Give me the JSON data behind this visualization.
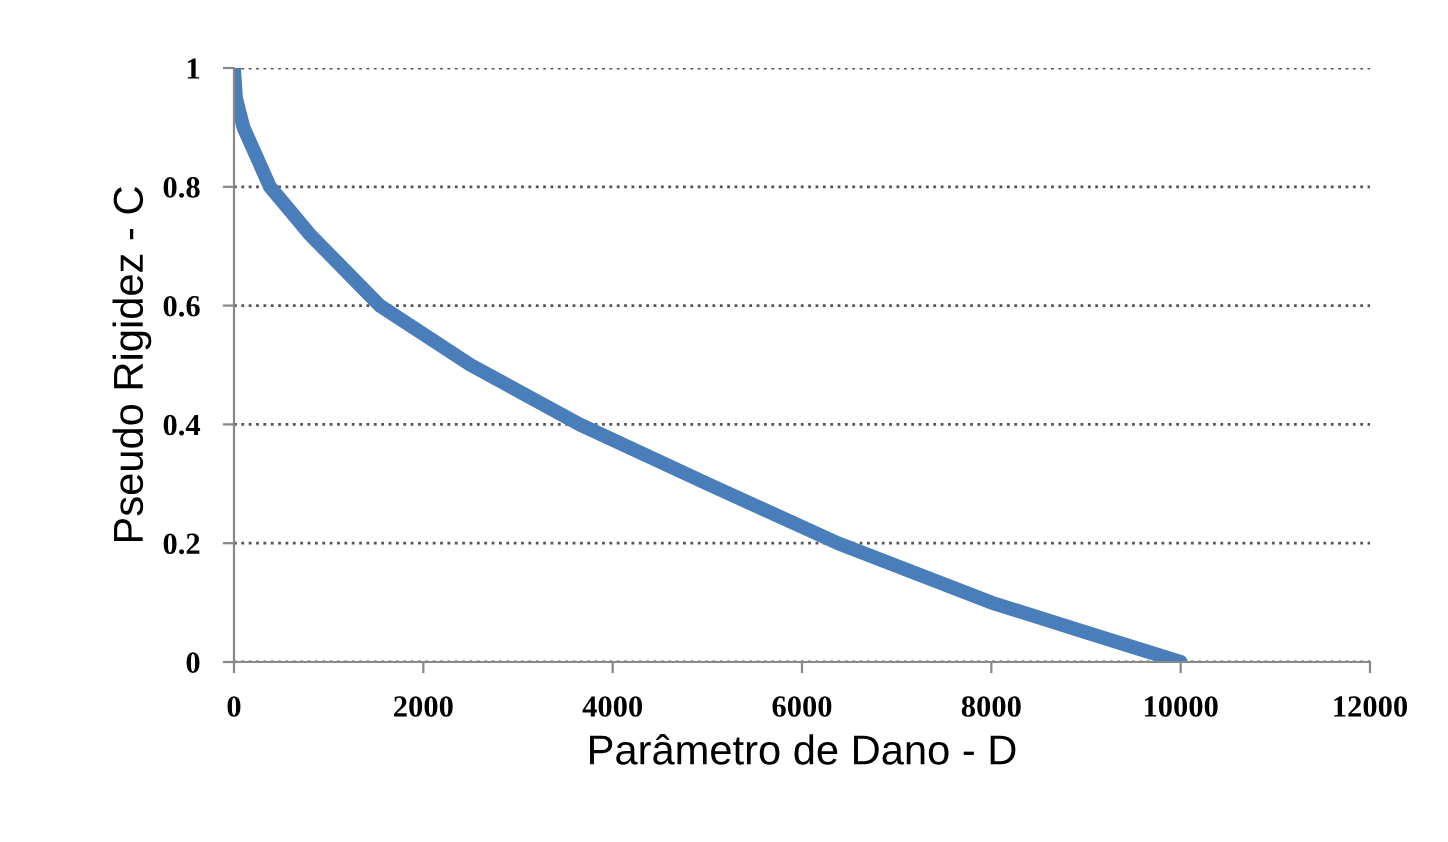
{
  "chart_data": {
    "type": "line",
    "xlabel": "Parâmetro de Dano - D",
    "ylabel": "Pseudo Rigidez - C",
    "xlim": [
      0,
      12000
    ],
    "xticks": [
      0,
      2000,
      4000,
      6000,
      8000,
      10000,
      12000
    ],
    "ylim": [
      0,
      1
    ],
    "yticks": [
      0,
      0.2,
      0.4,
      0.6,
      0.8,
      1
    ],
    "grid": "y",
    "marker": "none",
    "line_style": "solid",
    "series": [
      {
        "color": "#4a7ebb",
        "x": [
          0,
          20,
          100,
          380,
          800,
          1540,
          2500,
          3650,
          5000,
          6380,
          8000,
          9000,
          10000
        ],
        "values": [
          1,
          0.95,
          0.9,
          0.8,
          0.72,
          0.6,
          0.5,
          0.4,
          0.3,
          0.2,
          0.1,
          0.05,
          0
        ]
      }
    ]
  }
}
